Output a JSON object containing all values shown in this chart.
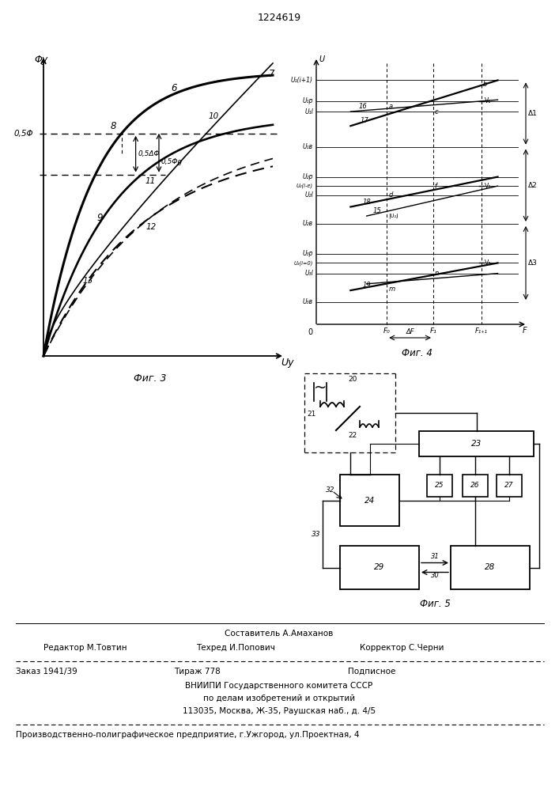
{
  "title": "1224619",
  "background_color": "#ffffff",
  "line_color": "#000000",
  "text_color": "#000000",
  "fig3_label": "Фиг. 3",
  "fig4_label": "Фиг. 4",
  "fig5_label": "Фиг. 5",
  "footer_sestavitel": "Составитель А.Амаханов",
  "footer_redaktor": "Редактор М.Товтин",
  "footer_tehred": "Техред И.Попович",
  "footer_korrektor": "Корректор С.Черни",
  "footer_zakaz": "Заказ 1941/39",
  "footer_tirazh": "Тираж 778",
  "footer_podpisnoe": "Подписное",
  "footer_vniip1": "ВНИИПИ Государственного комитета СССР",
  "footer_vniip2": "по делам изобретений и открытий",
  "footer_vniip3": "113035, Москва, Ж-35, Раушская наб., д. 4/5",
  "footer_prod": "Производственно-полиграфическое предприятие, г.Ужгород, ул.Проектная, 4"
}
